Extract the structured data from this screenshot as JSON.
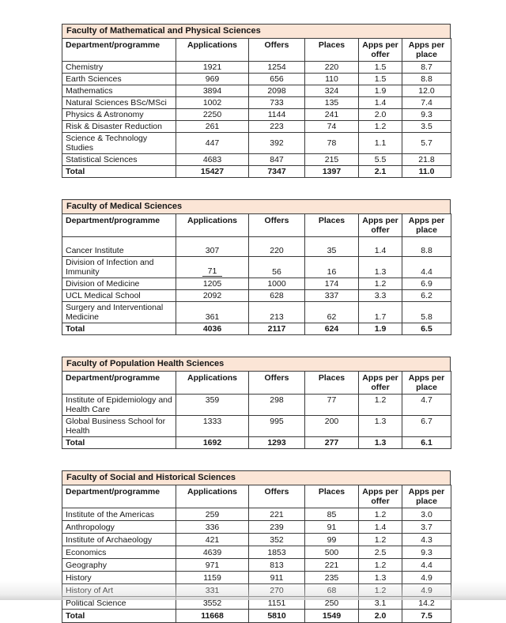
{
  "colors": {
    "band_background": "#fbe5d6",
    "table_border": "#3b3b3b",
    "text": "#161616",
    "page_background": "#ffffff"
  },
  "columns": [
    "Department/programme",
    "Applications",
    "Offers",
    "Places",
    "Apps per offer",
    "Apps per place"
  ],
  "tables": [
    {
      "title": "Faculty of Mathematical and Physical Sciences",
      "rows": [
        {
          "name": "Chemistry",
          "values": [
            "1921",
            "1254",
            "220",
            "1.5",
            "8.7"
          ]
        },
        {
          "name": "Earth Sciences",
          "values": [
            "969",
            "656",
            "110",
            "1.5",
            "8.8"
          ]
        },
        {
          "name": "Mathematics",
          "values": [
            "3894",
            "2098",
            "324",
            "1.9",
            "12.0"
          ]
        },
        {
          "name": "Natural Sciences BSc/MSci",
          "values": [
            "1002",
            "733",
            "135",
            "1.4",
            "7.4"
          ]
        },
        {
          "name": "Physics & Astronomy",
          "values": [
            "2250",
            "1144",
            "241",
            "2.0",
            "9.3"
          ]
        },
        {
          "name": "Risk & Disaster Reduction",
          "values": [
            "261",
            "223",
            "74",
            "1.2",
            "3.5"
          ]
        },
        {
          "name": "Science & Technology Studies",
          "values": [
            "447",
            "392",
            "78",
            "1.1",
            "5.7"
          ]
        },
        {
          "name": "Statistical Sciences",
          "values": [
            "4683",
            "847",
            "215",
            "5.5",
            "21.8"
          ]
        }
      ],
      "total": {
        "label": "Total",
        "values": [
          "15427",
          "7347",
          "1397",
          "2.1",
          "11.0"
        ]
      }
    },
    {
      "title": "Faculty of Medical Sciences",
      "rows": [
        {
          "name": "Cancer Institute",
          "values": [
            "307",
            "220",
            "35",
            "1.4",
            "8.8"
          ]
        },
        {
          "name": "Division of Infection and Immunity",
          "values": [
            "71",
            "56",
            "16",
            "1.3",
            "4.4"
          ]
        },
        {
          "name": "Division of Medicine",
          "values": [
            "1205",
            "1000",
            "174",
            "1.2",
            "6.9"
          ]
        },
        {
          "name": "UCL Medical School",
          "values": [
            "2092",
            "628",
            "337",
            "3.3",
            "6.2"
          ]
        },
        {
          "name": "Surgery and Interventional Medicine",
          "values": [
            "361",
            "213",
            "62",
            "1.7",
            "5.8"
          ]
        }
      ],
      "total": {
        "label": "Total",
        "values": [
          "4036",
          "2117",
          "624",
          "1.9",
          "6.5"
        ]
      }
    },
    {
      "title": "Faculty of Population Health Sciences",
      "rows": [
        {
          "name": "Institute of Epidemiology and Health Care",
          "values": [
            "359",
            "298",
            "77",
            "1.2",
            "4.7"
          ]
        },
        {
          "name": "Global Business School for Health",
          "values": [
            "1333",
            "995",
            "200",
            "1.3",
            "6.7"
          ]
        }
      ],
      "total": {
        "label": "Total",
        "values": [
          "1692",
          "1293",
          "277",
          "1.3",
          "6.1"
        ]
      }
    },
    {
      "title": "Faculty of Social and Historical Sciences",
      "rows": [
        {
          "name": "Institute of the Americas",
          "values": [
            "259",
            "221",
            "85",
            "1.2",
            "3.0"
          ]
        },
        {
          "name": "Anthropology",
          "values": [
            "336",
            "239",
            "91",
            "1.4",
            "3.7"
          ]
        },
        {
          "name": "Institute of Archaeology",
          "values": [
            "421",
            "352",
            "99",
            "1.2",
            "4.3"
          ]
        },
        {
          "name": "Economics",
          "values": [
            "4639",
            "1853",
            "500",
            "2.5",
            "9.3"
          ]
        },
        {
          "name": "Geography",
          "values": [
            "971",
            "813",
            "221",
            "1.2",
            "4.4"
          ]
        },
        {
          "name": "History",
          "values": [
            "1159",
            "911",
            "235",
            "1.3",
            "4.9"
          ]
        },
        {
          "name": "History of Art",
          "values": [
            "331",
            "270",
            "68",
            "1.2",
            "4.9"
          ]
        },
        {
          "name": "Political Science",
          "values": [
            "3552",
            "1151",
            "250",
            "3.1",
            "14.2"
          ]
        }
      ],
      "total": {
        "label": "Total",
        "values": [
          "11668",
          "5810",
          "1549",
          "2.0",
          "7.5"
        ]
      }
    }
  ]
}
